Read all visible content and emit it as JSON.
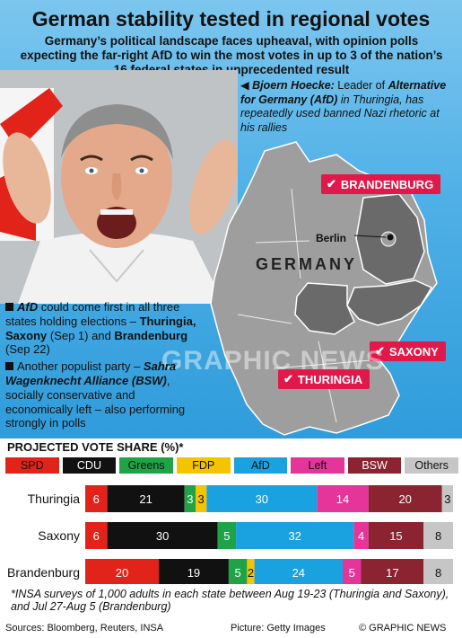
{
  "headline": "German stability tested in regional votes",
  "standfirst": "Germany’s political landscape faces upheaval, with opinion polls expecting the far-right AfD to win the most votes in up to 3 of the nation’s 16 federal states in unprecedented result",
  "photo_caption": {
    "arrow": "◀",
    "name": "Bjoern Hoecke:",
    "text1": " Leader of ",
    "party": "Alternative for Germany (AfD)",
    "text2": " in Thuringia, has repeatedly used banned Nazi rhetoric at his rallies"
  },
  "map": {
    "country": "GERMANY",
    "city": "Berlin",
    "states": {
      "brandenburg": "BRANDENBURG",
      "saxony": "SAXONY",
      "thuringia": "THURINGIA"
    },
    "check": "✔"
  },
  "notes": {
    "n1_a": "AfD",
    "n1_b": " could come first in all three states holding elections – ",
    "n1_c": "Thuringia, Saxony",
    "n1_d": " (Sep 1) and ",
    "n1_e": "Brandenburg",
    "n1_f": " (Sep 22)",
    "n2_a": "Another populist party – ",
    "n2_b": "Sahra Wagenknecht Alliance (BSW)",
    "n2_c": ", socially conservative and economically left – also performing strongly in polls"
  },
  "watermark": "GRAPHIC NEWS",
  "chart_data": {
    "type": "bar",
    "orientation": "horizontal",
    "stacked": true,
    "title": "PROJECTED VOTE SHARE (%)*",
    "categories": [
      "Thuringia",
      "Saxony",
      "Brandenburg"
    ],
    "series": [
      {
        "name": "SPD",
        "color": "#e2231a",
        "values": [
          6,
          6,
          20
        ]
      },
      {
        "name": "CDU",
        "color": "#111111",
        "values": [
          21,
          30,
          19
        ]
      },
      {
        "name": "Greens",
        "color": "#1ea446",
        "values": [
          3,
          5,
          5
        ]
      },
      {
        "name": "FDP",
        "color": "#f5c400",
        "values": [
          3,
          0,
          2
        ]
      },
      {
        "name": "AfD",
        "color": "#1aa1e0",
        "values": [
          30,
          32,
          24
        ]
      },
      {
        "name": "Left",
        "color": "#e6359a",
        "values": [
          14,
          4,
          5
        ]
      },
      {
        "name": "BSW",
        "color": "#8b2330",
        "values": [
          20,
          15,
          17
        ]
      },
      {
        "name": "Others",
        "color": "#c6c6c6",
        "values": [
          3,
          8,
          8
        ]
      }
    ]
  },
  "footnote": "*INSA surveys of 1,000 adults in each state between Aug 19-23 (Thuringia and Saxony), and Jul 27-Aug 5 (Brandenburg)",
  "sources": "Sources: Bloomberg, Reuters, INSA",
  "picture_credit": "Picture: Getty Images",
  "credit": "© GRAPHIC NEWS"
}
